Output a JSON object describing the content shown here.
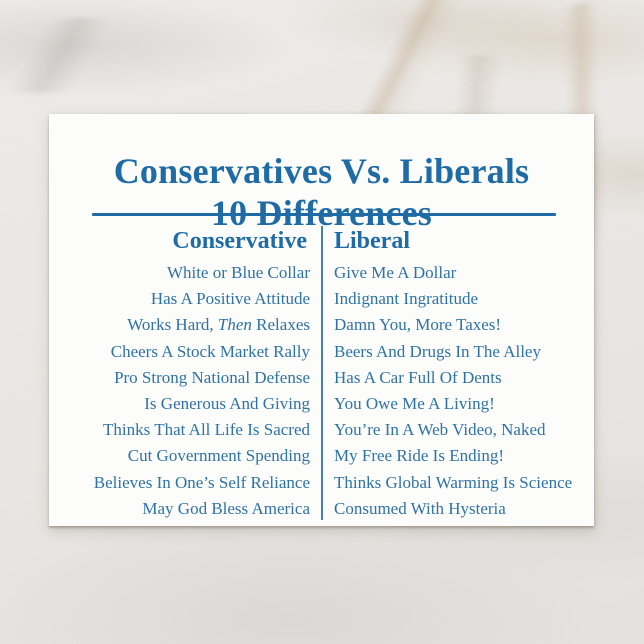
{
  "postcard": {
    "title": {
      "line1": "Conservatives Vs. Liberals",
      "line2": "10 Differences"
    },
    "table": {
      "headers": {
        "left": "Conservative",
        "right": "Liberal"
      },
      "rows": [
        {
          "left": "White or Blue Collar",
          "right": "Give Me A Dollar"
        },
        {
          "left": "Has A Positive Attitude",
          "right": "Indignant Ingratitude"
        },
        {
          "left_pre": "Works Hard, ",
          "left_italic": "Then",
          "left_post": " Relaxes",
          "right": "Damn You, More Taxes!"
        },
        {
          "left": "Cheers A Stock Market Rally",
          "right": "Beers And Drugs In The Alley"
        },
        {
          "left": "Pro Strong National Defense",
          "right": "Has A Car Full Of Dents"
        },
        {
          "left": "Is Generous And Giving",
          "right": "You Owe Me A Living!"
        },
        {
          "left": "Thinks That All Life Is Sacred",
          "right": "You’re In A Web Video, Naked"
        },
        {
          "left": "Cut Government Spending",
          "right": "My Free Ride Is Ending!"
        },
        {
          "left": "Believes In One’s Self Reliance",
          "right": "Thinks Global Warming Is Science"
        },
        {
          "left": "May God Bless America",
          "right": "Consumed With Hysteria"
        }
      ]
    },
    "colors": {
      "title_blue": "#1e6ba6",
      "text_blue": "#2e73a6",
      "card_bg": "#fcfcfb",
      "background": "#e9e7e4"
    }
  }
}
